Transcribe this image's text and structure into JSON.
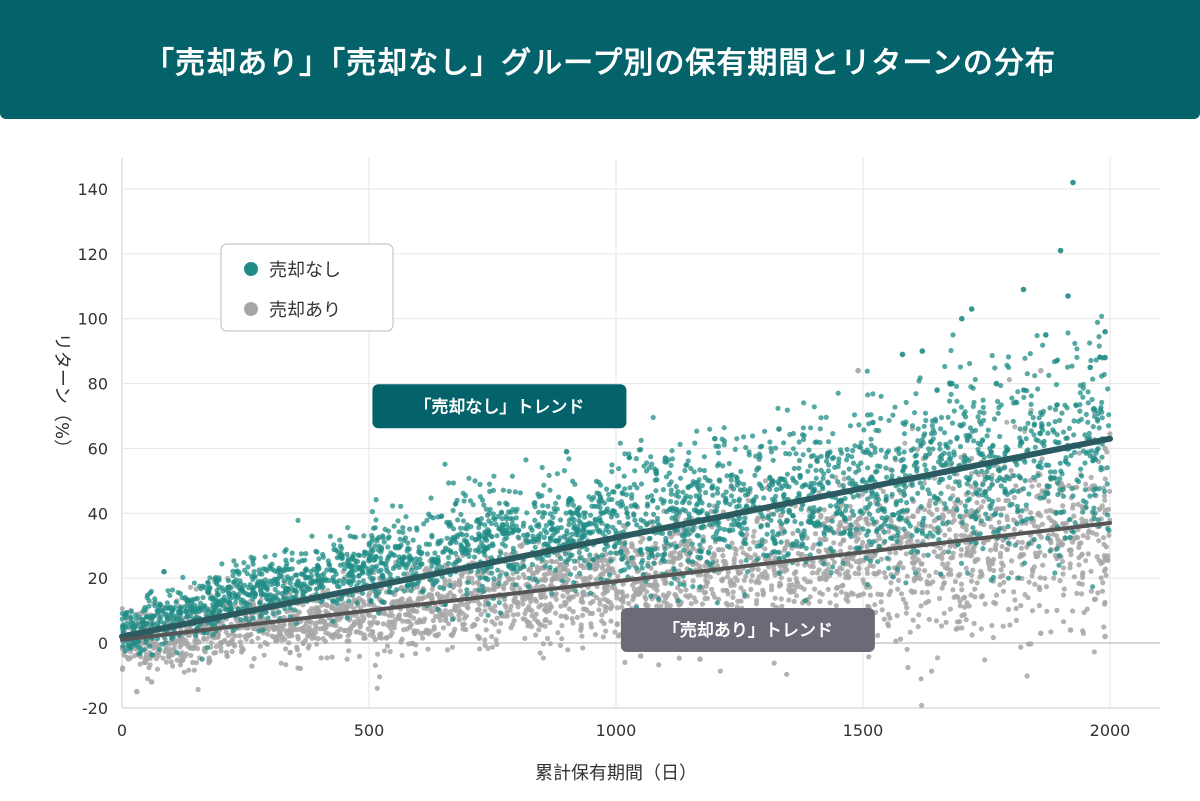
{
  "title": "「売却あり」「売却なし」グループ別の保有期間とリターンの分布",
  "colors": {
    "header_bg": "#03626a",
    "no_sale": "#1f8c86",
    "with_sale": "#a6a6a6",
    "trend_no_sale": "#2b5b60",
    "trend_with_sale": "#555555",
    "label_no_sale_bg": "#03626a",
    "label_with_sale_bg": "#6b6b78",
    "grid": "#e6e6e6"
  },
  "chart_data": {
    "type": "scatter",
    "title": "「売却あり」「売却なし」グループ別の保有期間とリターンの分布",
    "xlabel": "累計保有期間（日）",
    "ylabel": "リターン（%）",
    "xlim": [
      0,
      2100
    ],
    "ylim": [
      -20,
      150
    ],
    "xticks": [
      0,
      500,
      1000,
      1500,
      2000
    ],
    "yticks": [
      -20,
      0,
      20,
      40,
      60,
      80,
      100,
      120,
      140
    ],
    "grid": true,
    "legend_position": "top-left",
    "series": [
      {
        "name": "売却なし",
        "color": "#1f8c86",
        "trend": {
          "label": "「売却なし」トレンド",
          "x": [
            0,
            2000
          ],
          "y": [
            2,
            63
          ]
        },
        "cloud": [
          {
            "x_range": [
              0,
              100
            ],
            "center_start": 3,
            "center_end": 8,
            "spread": 4
          },
          {
            "x_range": [
              100,
              500
            ],
            "center_start": 8,
            "center_end": 25,
            "spread": 5
          },
          {
            "x_range": [
              500,
              1000
            ],
            "center_start": 25,
            "center_end": 37,
            "spread": 8
          },
          {
            "x_range": [
              1000,
              1500
            ],
            "center_start": 37,
            "center_end": 48,
            "spread": 11
          },
          {
            "x_range": [
              1500,
              2000
            ],
            "center_start": 48,
            "center_end": 62,
            "spread": 15
          }
        ],
        "notable_points": [
          {
            "x": 85,
            "y": 22
          },
          {
            "x": 1925,
            "y": 142
          },
          {
            "x": 1900,
            "y": 121
          },
          {
            "x": 1915,
            "y": 107
          },
          {
            "x": 1825,
            "y": 109
          },
          {
            "x": 1720,
            "y": 103
          },
          {
            "x": 1700,
            "y": 100
          },
          {
            "x": 1580,
            "y": 89
          },
          {
            "x": 1620,
            "y": 90
          },
          {
            "x": 1990,
            "y": 96
          },
          {
            "x": 1990,
            "y": 88
          },
          {
            "x": 1870,
            "y": 95
          },
          {
            "x": 1960,
            "y": 85
          },
          {
            "x": 1770,
            "y": 80
          },
          {
            "x": 1680,
            "y": 80
          },
          {
            "x": 1650,
            "y": 78
          },
          {
            "x": 900,
            "y": 59
          },
          {
            "x": 1100,
            "y": 57
          },
          {
            "x": 1200,
            "y": 63
          },
          {
            "x": 1330,
            "y": 66
          },
          {
            "x": 1520,
            "y": 68
          }
        ]
      },
      {
        "name": "売却あり",
        "color": "#a6a6a6",
        "trend": {
          "label": "「売却あり」トレンド",
          "x": [
            0,
            2000
          ],
          "y": [
            1,
            37
          ]
        },
        "cloud": [
          {
            "x_range": [
              0,
              150
            ],
            "center_start": 0,
            "center_end": 3,
            "spread": 5
          },
          {
            "x_range": [
              150,
              500
            ],
            "center_start": 3,
            "center_end": 9,
            "spread": 5
          },
          {
            "x_range": [
              500,
              1000
            ],
            "center_start": 9,
            "center_end": 18,
            "spread": 7
          },
          {
            "x_range": [
              1000,
              1500
            ],
            "center_start": 18,
            "center_end": 26,
            "spread": 10
          },
          {
            "x_range": [
              1500,
              2000
            ],
            "center_start": 26,
            "center_end": 35,
            "spread": 14
          }
        ],
        "notable_points": [
          {
            "x": 30,
            "y": -15
          },
          {
            "x": 60,
            "y": -12
          },
          {
            "x": 1490,
            "y": 84
          },
          {
            "x": 1860,
            "y": 84
          },
          {
            "x": 1990,
            "y": 2
          },
          {
            "x": 1920,
            "y": 4
          },
          {
            "x": 1860,
            "y": 3
          },
          {
            "x": 1170,
            "y": -5
          },
          {
            "x": 1050,
            "y": -4
          },
          {
            "x": 1990,
            "y": 60
          }
        ]
      }
    ]
  }
}
